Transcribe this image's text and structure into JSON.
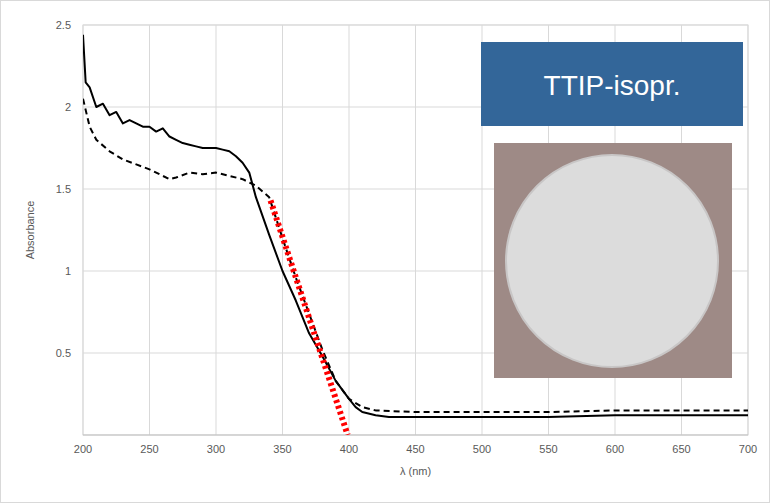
{
  "chart_data": {
    "type": "line",
    "annotation": "TTIP-isopr.",
    "x_label": "λ (nm)",
    "y_label": "Absorbance",
    "xlim": [
      200,
      700
    ],
    "xticks": [
      200,
      250,
      300,
      350,
      400,
      450,
      500,
      550,
      600,
      650,
      700
    ],
    "ylim": [
      0,
      2.5
    ],
    "yticks": [
      0.5,
      1,
      1.5,
      2,
      2.5
    ],
    "grid": true,
    "series": [
      {
        "color": "#000000",
        "line_style": "solid",
        "x": [
          200,
          202,
          205,
          210,
          215,
          220,
          225,
          230,
          235,
          240,
          245,
          250,
          255,
          260,
          265,
          270,
          275,
          280,
          285,
          290,
          295,
          300,
          305,
          310,
          315,
          320,
          325,
          330,
          340,
          350,
          360,
          370,
          380,
          390,
          400,
          405,
          410,
          420,
          430,
          450,
          500,
          550,
          600,
          650,
          700
        ],
        "values": [
          2.44,
          2.15,
          2.12,
          2.0,
          2.02,
          1.95,
          1.97,
          1.9,
          1.92,
          1.9,
          1.88,
          1.88,
          1.85,
          1.87,
          1.82,
          1.8,
          1.78,
          1.77,
          1.76,
          1.75,
          1.75,
          1.75,
          1.74,
          1.73,
          1.7,
          1.66,
          1.6,
          1.45,
          1.22,
          1.0,
          0.82,
          0.62,
          0.48,
          0.33,
          0.22,
          0.17,
          0.14,
          0.12,
          0.11,
          0.11,
          0.11,
          0.11,
          0.12,
          0.12,
          0.12
        ]
      },
      {
        "color": "#000000",
        "line_style": "dashed",
        "x": [
          200,
          205,
          210,
          220,
          230,
          240,
          250,
          260,
          265,
          270,
          280,
          290,
          300,
          310,
          320,
          330,
          340,
          350,
          360,
          370,
          380,
          390,
          400,
          410,
          420,
          450,
          500,
          550,
          600,
          650,
          700
        ],
        "values": [
          2.05,
          1.88,
          1.8,
          1.73,
          1.68,
          1.65,
          1.62,
          1.58,
          1.56,
          1.57,
          1.6,
          1.59,
          1.6,
          1.58,
          1.56,
          1.52,
          1.45,
          1.2,
          0.96,
          0.74,
          0.52,
          0.33,
          0.22,
          0.17,
          0.15,
          0.14,
          0.14,
          0.14,
          0.15,
          0.15,
          0.15
        ]
      },
      {
        "color": "#ff0000",
        "line_style": "dotted",
        "x": [
          341,
          399
        ],
        "values": [
          1.43,
          0
        ]
      }
    ]
  }
}
